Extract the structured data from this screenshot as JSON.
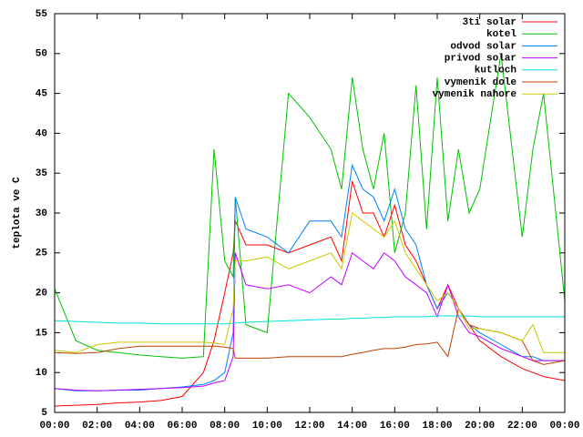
{
  "chart_data": {
    "type": "line",
    "y_label": "teplota ve C",
    "x": [
      0,
      1,
      2,
      3,
      4,
      5,
      6,
      7,
      7.5,
      8,
      8.4,
      8.5,
      9,
      10,
      11,
      12,
      13,
      13.5,
      14,
      14.5,
      15,
      15.5,
      16,
      16.5,
      17,
      17.5,
      18,
      18.5,
      19,
      19.5,
      20,
      21,
      22,
      22.5,
      23,
      24
    ],
    "series": [
      {
        "name": "3ti solar",
        "color": "#ff0000",
        "values": [
          5.8,
          5.9,
          6.0,
          6.2,
          6.3,
          6.5,
          7.0,
          10,
          14,
          20,
          25,
          29,
          26,
          26,
          25,
          26,
          27,
          24,
          34,
          30,
          30,
          27,
          31,
          26,
          24,
          21,
          18,
          21,
          18,
          16,
          14,
          12,
          10.5,
          10,
          9.5,
          9
        ]
      },
      {
        "name": "kotel",
        "color": "#00c000",
        "values": [
          20.5,
          14,
          12.8,
          12.5,
          12.2,
          12,
          11.8,
          12,
          38,
          24,
          22,
          32,
          16,
          15,
          45,
          42,
          38,
          33,
          47,
          38,
          33,
          40,
          25,
          30,
          46,
          28,
          47,
          29,
          38,
          30,
          33,
          50,
          27,
          38,
          45,
          19
        ]
      },
      {
        "name": "odvod solar",
        "color": "#0080ff",
        "values": [
          8,
          7.7,
          7.7,
          7.8,
          7.8,
          8,
          8.2,
          8.5,
          9,
          10,
          15,
          32,
          28,
          27,
          25,
          29,
          29,
          27,
          36,
          33,
          32,
          29,
          33,
          28,
          26,
          21,
          18,
          20,
          18,
          16,
          15,
          13.5,
          12,
          12,
          11.5,
          11.5
        ]
      },
      {
        "name": "privod solar",
        "color": "#c000ff",
        "values": [
          8,
          7.8,
          7.7,
          7.8,
          7.9,
          8,
          8.1,
          8.3,
          8.7,
          9,
          12,
          25,
          21,
          20.5,
          21,
          20,
          22,
          21,
          25,
          24,
          23,
          25,
          24,
          22,
          21,
          20,
          17,
          21,
          17,
          15,
          14.5,
          13,
          12,
          11.5,
          11.5,
          11.5
        ]
      },
      {
        "name": "kutloch",
        "color": "#00e0e0",
        "values": [
          16.5,
          16.4,
          16.3,
          16.2,
          16.2,
          16.1,
          16.1,
          16.1,
          16.1,
          16.1,
          16.2,
          16.2,
          16.3,
          16.4,
          16.5,
          16.6,
          16.7,
          16.7,
          16.8,
          16.8,
          16.9,
          16.9,
          17,
          17,
          17,
          17,
          17.1,
          17.1,
          17.1,
          17.1,
          17,
          17,
          17,
          17,
          17,
          17
        ]
      },
      {
        "name": "vymenik dole",
        "color": "#c04000",
        "values": [
          12.5,
          12.4,
          12.5,
          13,
          13.3,
          13.3,
          13.3,
          13.3,
          13.3,
          13.2,
          13,
          11.8,
          11.8,
          11.8,
          12,
          12,
          12,
          12,
          12.3,
          12.5,
          12.8,
          13,
          13,
          13.2,
          13.5,
          13.6,
          13.8,
          12,
          18,
          16,
          15.5,
          15,
          14,
          11.5,
          11,
          11.5
        ]
      },
      {
        "name": "vymenik nahore",
        "color": "#c8c800",
        "values": [
          12.8,
          12.5,
          13.5,
          13.8,
          13.8,
          13.8,
          13.8,
          13.8,
          13.7,
          13.5,
          18,
          24,
          24,
          24.5,
          23,
          24,
          25,
          23,
          30,
          29,
          28,
          27,
          29,
          25,
          23,
          21,
          19,
          20,
          18,
          15.5,
          15.5,
          15,
          14,
          16,
          12.5,
          12.5
        ]
      }
    ],
    "xlim": [
      0,
      24
    ],
    "xticks": [
      {
        "value": 0,
        "label": "00:00"
      },
      {
        "value": 2,
        "label": "02:00"
      },
      {
        "value": 4,
        "label": "04:00"
      },
      {
        "value": 6,
        "label": "06:00"
      },
      {
        "value": 8,
        "label": "08:00"
      },
      {
        "value": 10,
        "label": "10:00"
      },
      {
        "value": 12,
        "label": "12:00"
      },
      {
        "value": 14,
        "label": "14:00"
      },
      {
        "value": 16,
        "label": "16:00"
      },
      {
        "value": 18,
        "label": "18:00"
      },
      {
        "value": 20,
        "label": "20:00"
      },
      {
        "value": 22,
        "label": "22:00"
      },
      {
        "value": 24,
        "label": "00:00"
      }
    ],
    "ylim": [
      5,
      55
    ],
    "yticks": [
      5,
      10,
      15,
      20,
      25,
      30,
      35,
      40,
      45,
      50,
      55
    ],
    "legend": "top-right"
  }
}
